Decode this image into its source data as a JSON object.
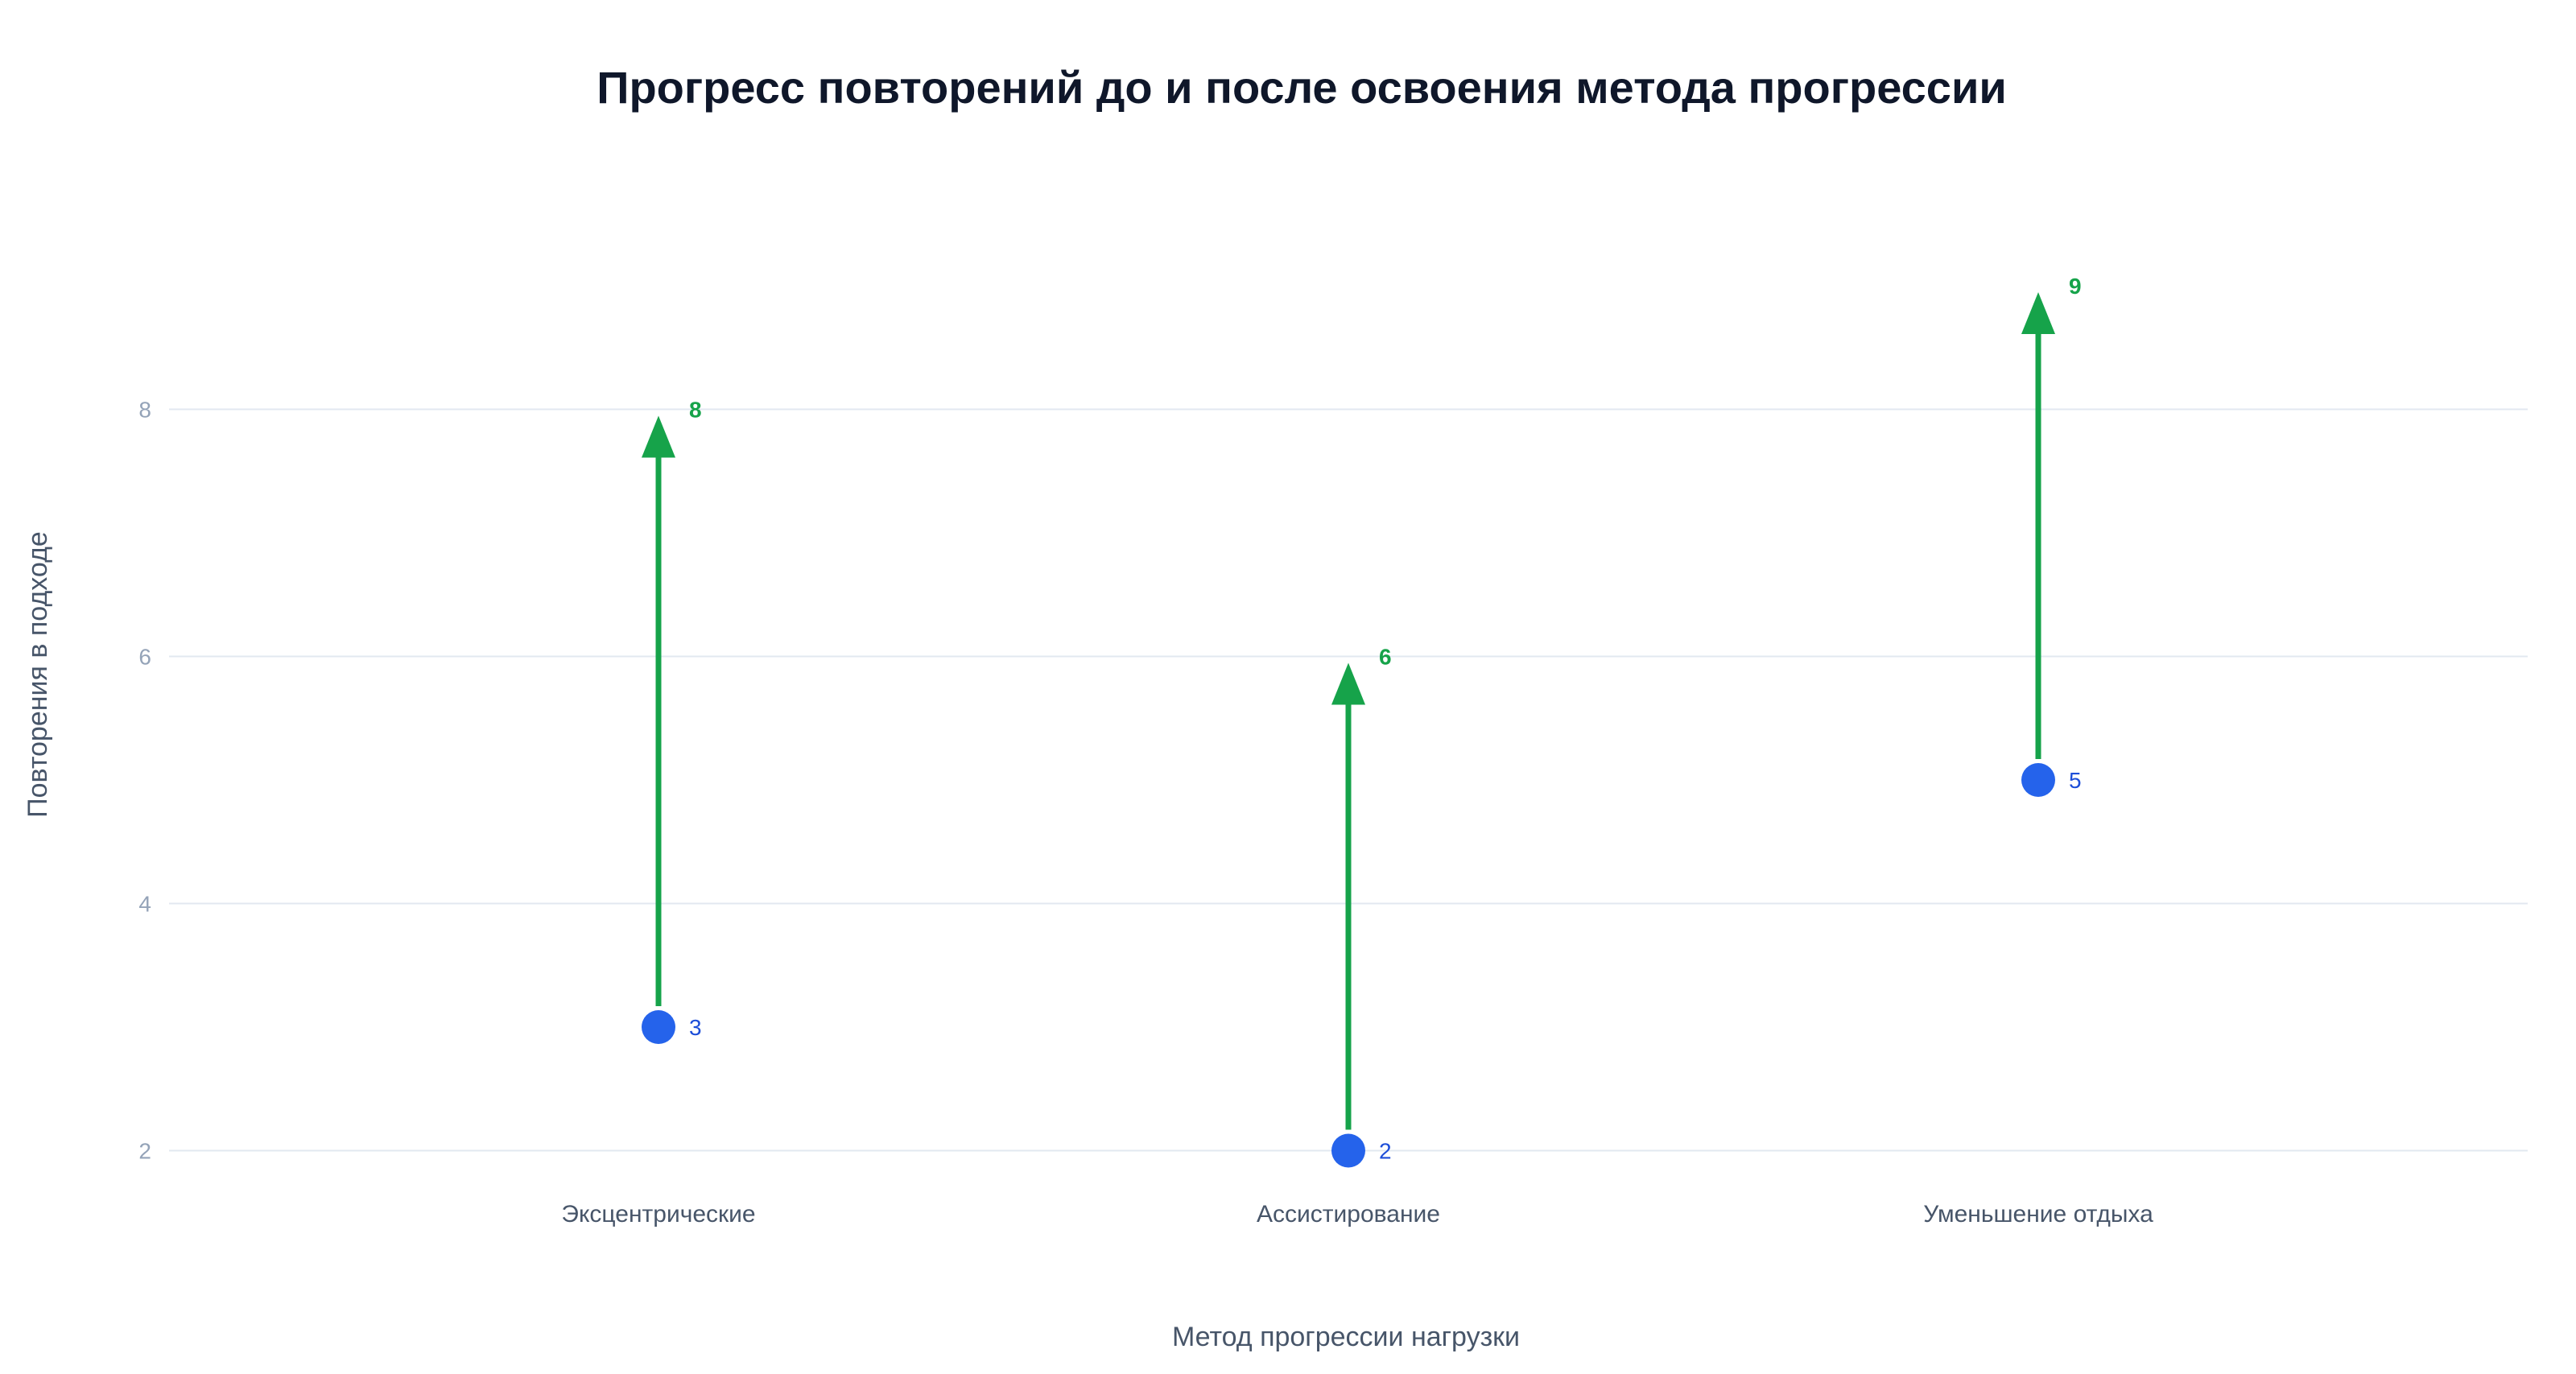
{
  "chart_data": {
    "type": "arrow-dot",
    "title": "Прогресс повторений до и после освоения метода прогрессии",
    "xlabel": "Метод прогрессии нагрузки",
    "ylabel": "Повторения в подходе",
    "categories": [
      "Эксцентрические",
      "Ассистирование",
      "Уменьшение отдыха"
    ],
    "series": [
      {
        "values": [
          3,
          2,
          5
        ]
      },
      {
        "values": [
          8,
          6,
          9
        ]
      }
    ],
    "yticks": [
      2,
      4,
      6,
      8
    ],
    "ylim": [
      1.5,
      10.5
    ],
    "grid": true,
    "legend": "none",
    "colors": {
      "before": "#2563eb",
      "after": "#16a34a",
      "grid": "#e2e8f0",
      "title": "#0f172a"
    }
  }
}
